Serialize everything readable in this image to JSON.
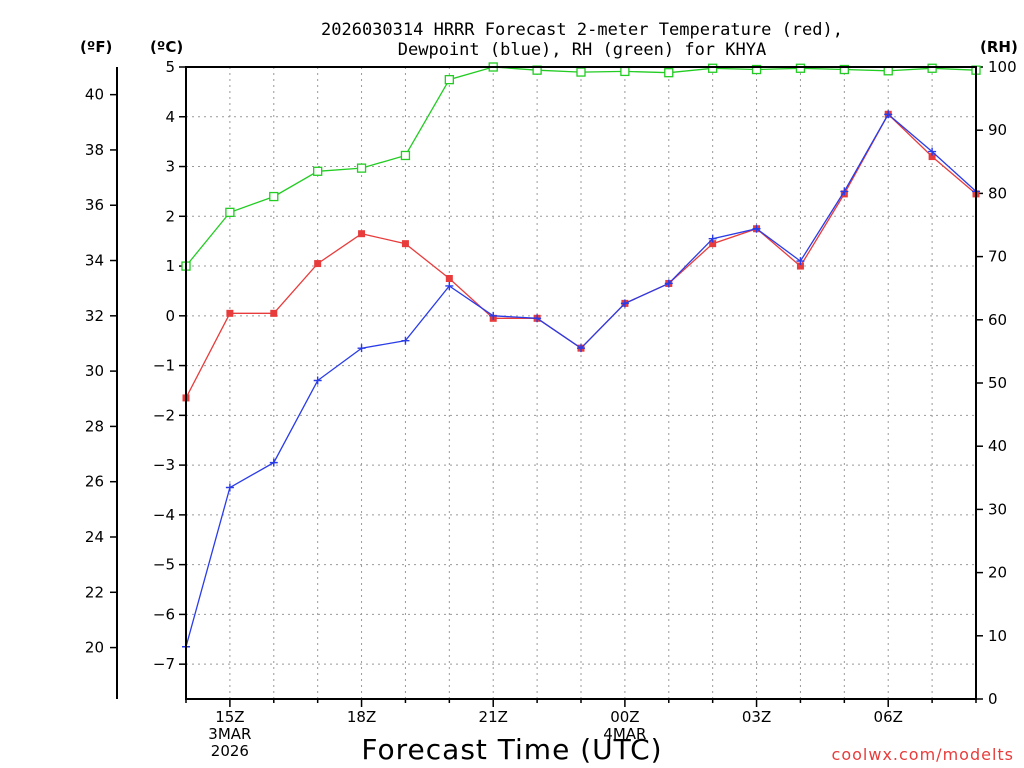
{
  "chart_data": {
    "type": "line",
    "title_line1": "2026030314 HRRR Forecast 2-meter Temperature (red),",
    "title_line2": "Dewpoint (blue), RH (green) for KHYA",
    "xlabel": "Forecast Time (UTC)",
    "credit": "coolwx.com/modelts",
    "unit_f": "(ºF)",
    "unit_c": "(ºC)",
    "unit_rh": "(RH)",
    "colors": {
      "temperature": "#e83c3c",
      "dewpoint": "#2a3ce8",
      "rh": "#22cc22",
      "grid": "#999999"
    },
    "x_hours": [
      14,
      15,
      16,
      17,
      18,
      19,
      20,
      21,
      22,
      23,
      24,
      25,
      26,
      27,
      28,
      29,
      30,
      31,
      32
    ],
    "xlim": [
      14,
      32
    ],
    "x_ticks": [
      {
        "hour": 15,
        "lines": [
          "15Z",
          "3MAR",
          "2026"
        ]
      },
      {
        "hour": 18,
        "lines": [
          "18Z"
        ]
      },
      {
        "hour": 21,
        "lines": [
          "21Z"
        ]
      },
      {
        "hour": 24,
        "lines": [
          "00Z",
          "4MAR"
        ]
      },
      {
        "hour": 27,
        "lines": [
          "03Z"
        ]
      },
      {
        "hour": 30,
        "lines": [
          "06Z"
        ]
      }
    ],
    "ylim_c": [
      -7.7,
      5
    ],
    "y_ticks_c": [
      "5",
      "4",
      "3",
      "2",
      "1",
      "0",
      "−1",
      "−2",
      "−3",
      "−4",
      "−5",
      "−6",
      "−7"
    ],
    "y_ticks_f": [
      "40",
      "38",
      "36",
      "34",
      "32",
      "30",
      "28",
      "26",
      "24",
      "22",
      "20"
    ],
    "ylim_rh": [
      0,
      100
    ],
    "y_ticks_rh": [
      "100",
      "90",
      "80",
      "70",
      "60",
      "50",
      "40",
      "30",
      "20",
      "10",
      "0"
    ],
    "series": [
      {
        "name": "Temperature",
        "unit": "C",
        "marker": "filled-square",
        "values": [
          -1.65,
          0.05,
          0.05,
          1.05,
          1.65,
          1.45,
          0.75,
          -0.05,
          -0.05,
          -0.65,
          0.25,
          0.65,
          1.45,
          1.75,
          1.0,
          2.45,
          4.05,
          3.2,
          2.45
        ]
      },
      {
        "name": "Dewpoint",
        "unit": "C",
        "marker": "plus",
        "values": [
          -6.65,
          -3.45,
          -2.95,
          -1.3,
          -0.65,
          -0.5,
          0.6,
          0.0,
          -0.05,
          -0.65,
          0.25,
          0.65,
          1.55,
          1.75,
          1.1,
          2.5,
          4.05,
          3.3,
          2.5
        ]
      },
      {
        "name": "RH",
        "unit": "%",
        "marker": "open-square",
        "values": [
          68.5,
          77,
          79.5,
          83.5,
          84,
          86,
          98,
          100,
          99.5,
          99.2,
          99.3,
          99.1,
          99.8,
          99.6,
          99.8,
          99.6,
          99.4,
          99.8,
          99.5
        ]
      }
    ]
  }
}
